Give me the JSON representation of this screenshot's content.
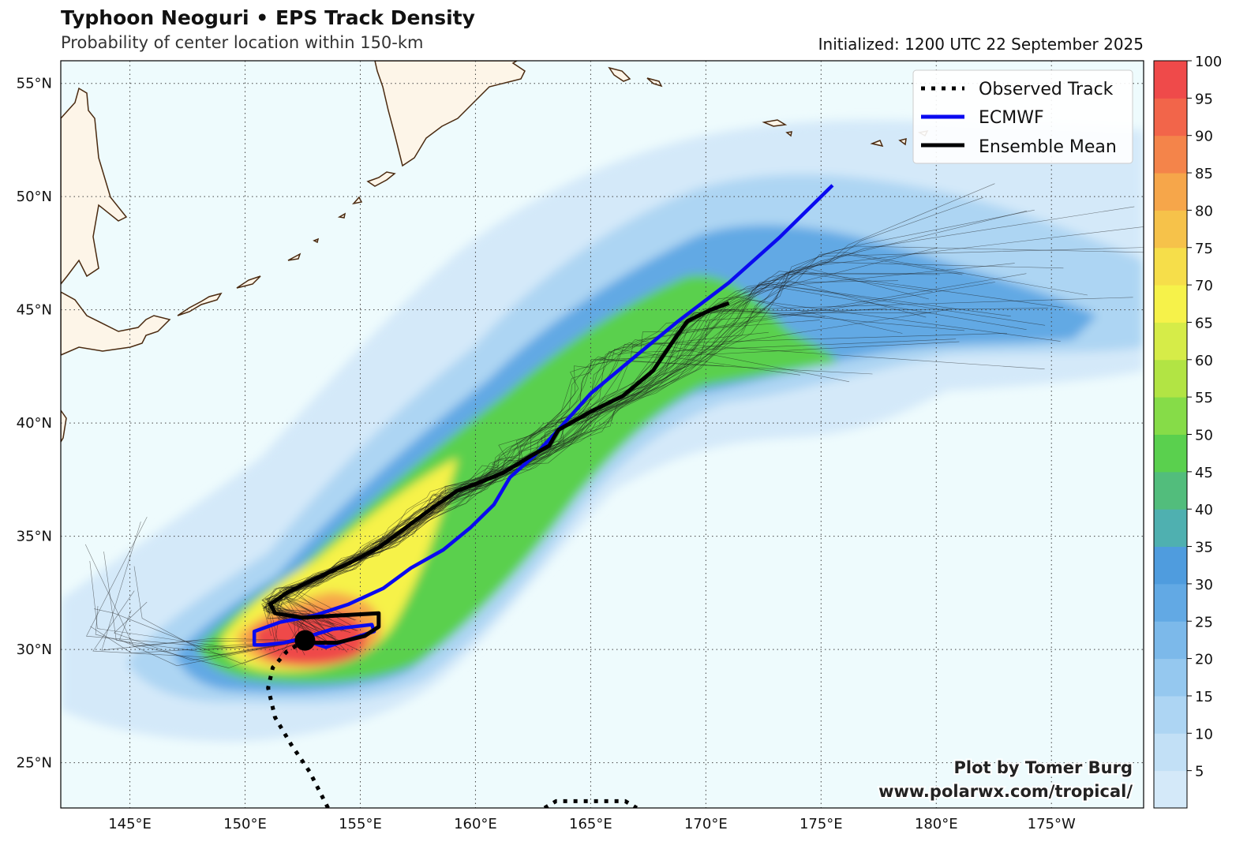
{
  "header": {
    "title": "Typhoon Neoguri • EPS Track Density",
    "subtitle": "Probability of center location within 150-km",
    "initialized": "Initialized: 1200 UTC 22 September 2025"
  },
  "map": {
    "lon_range": [
      142,
      189
    ],
    "lat_range": [
      23,
      56
    ],
    "ocean_color": "#eefbfd",
    "land_color": "#fdf5e8",
    "coast_color": "#4a2a10",
    "lon_ticks": [
      {
        "lon": 145,
        "label": "145°E"
      },
      {
        "lon": 150,
        "label": "150°E"
      },
      {
        "lon": 155,
        "label": "155°E"
      },
      {
        "lon": 160,
        "label": "160°E"
      },
      {
        "lon": 165,
        "label": "165°E"
      },
      {
        "lon": 170,
        "label": "170°E"
      },
      {
        "lon": 175,
        "label": "175°E"
      },
      {
        "lon": 180,
        "label": "180°E"
      },
      {
        "lon": 185,
        "label": "175°W"
      }
    ],
    "lat_ticks": [
      {
        "lat": 25,
        "label": "25°N"
      },
      {
        "lat": 30,
        "label": "30°N"
      },
      {
        "lat": 35,
        "label": "35°N"
      },
      {
        "lat": 40,
        "label": "40°N"
      },
      {
        "lat": 45,
        "label": "45°N"
      },
      {
        "lat": 50,
        "label": "50°N"
      },
      {
        "lat": 55,
        "label": "55°N"
      }
    ]
  },
  "legend": {
    "items": [
      {
        "label": "Observed Track",
        "style": "dotted",
        "color": "#000000"
      },
      {
        "label": "ECMWF",
        "style": "solid",
        "color": "#0a0af0"
      },
      {
        "label": "Ensemble Mean",
        "style": "solid",
        "color": "#000000"
      }
    ]
  },
  "colorbar": {
    "ticks": [
      "5",
      "10",
      "15",
      "20",
      "25",
      "30",
      "35",
      "40",
      "45",
      "50",
      "55",
      "60",
      "65",
      "70",
      "75",
      "80",
      "85",
      "90",
      "95",
      "100"
    ],
    "colors": [
      "#d4e9f9",
      "#c2e0f6",
      "#add5f3",
      "#95c8ef",
      "#7cb9ea",
      "#62a9e4",
      "#4f9cde",
      "#4fb0b0",
      "#52bd7c",
      "#5ad04e",
      "#86dc48",
      "#b2e444",
      "#d6ec48",
      "#f6f24a",
      "#f6de4a",
      "#f6c24a",
      "#f6a64a",
      "#f4844a",
      "#f2654a",
      "#ef4a4a"
    ]
  },
  "observed_track": [
    [
      153.6,
      23.0
    ],
    [
      153.3,
      23.6
    ],
    [
      152.8,
      24.6
    ],
    [
      152.0,
      25.8
    ],
    [
      151.3,
      27.0
    ],
    [
      151.0,
      28.3
    ],
    [
      151.2,
      29.2
    ],
    [
      151.8,
      29.9
    ],
    [
      152.6,
      30.4
    ]
  ],
  "observed_track_loop": [
    [
      163.0,
      23.0
    ],
    [
      163.5,
      23.3
    ],
    [
      166.5,
      23.3
    ],
    [
      167.0,
      23.0
    ]
  ],
  "storm_center": [
    152.6,
    30.4
  ],
  "ecmwf_track": [
    [
      152.6,
      30.4
    ],
    [
      153.5,
      30.1
    ],
    [
      154.7,
      30.5
    ],
    [
      155.6,
      30.8
    ],
    [
      155.5,
      31.1
    ],
    [
      153.8,
      30.9
    ],
    [
      152.5,
      30.5
    ],
    [
      151.7,
      30.3
    ],
    [
      150.8,
      30.2
    ],
    [
      150.4,
      30.2
    ],
    [
      150.4,
      30.8
    ],
    [
      151.5,
      31.2
    ],
    [
      153.0,
      31.5
    ],
    [
      154.5,
      32.0
    ],
    [
      156.0,
      32.7
    ],
    [
      157.2,
      33.6
    ],
    [
      158.6,
      34.4
    ],
    [
      159.8,
      35.4
    ],
    [
      160.8,
      36.4
    ],
    [
      161.5,
      37.6
    ],
    [
      162.6,
      38.6
    ],
    [
      163.5,
      39.6
    ],
    [
      165.0,
      41.3
    ],
    [
      167.0,
      43.0
    ],
    [
      168.8,
      44.5
    ],
    [
      171.0,
      46.2
    ],
    [
      173.2,
      48.2
    ],
    [
      175.5,
      50.5
    ]
  ],
  "ensemble_mean": [
    [
      152.6,
      30.3
    ],
    [
      154.0,
      30.3
    ],
    [
      155.2,
      30.6
    ],
    [
      155.8,
      31.0
    ],
    [
      155.8,
      31.6
    ],
    [
      154.0,
      31.5
    ],
    [
      152.5,
      31.4
    ],
    [
      151.3,
      31.6
    ],
    [
      151.1,
      32.0
    ],
    [
      151.8,
      32.5
    ],
    [
      153.0,
      33.1
    ],
    [
      154.5,
      33.8
    ],
    [
      155.8,
      34.5
    ],
    [
      157.0,
      35.4
    ],
    [
      158.2,
      36.3
    ],
    [
      159.2,
      37.0
    ],
    [
      160.0,
      37.3
    ],
    [
      161.2,
      37.8
    ],
    [
      162.5,
      38.6
    ],
    [
      163.2,
      39.0
    ],
    [
      163.6,
      39.7
    ],
    [
      165.0,
      40.5
    ],
    [
      166.4,
      41.2
    ],
    [
      167.7,
      42.3
    ],
    [
      168.5,
      43.5
    ],
    [
      169.2,
      44.5
    ],
    [
      170.2,
      45.0
    ],
    [
      171.0,
      45.3
    ]
  ],
  "footer": {
    "credit_line1": "Plot by Tomer Burg",
    "credit_line2": "www.polarwx.com/tropical/"
  }
}
